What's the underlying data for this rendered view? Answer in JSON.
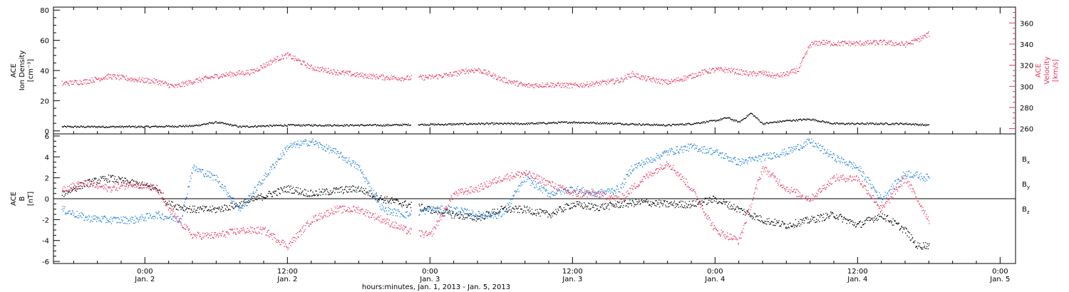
{
  "colors": {
    "axis": "#000000",
    "density": "#000000",
    "velocity": "#e8385e",
    "bx": "#000000",
    "by": "#1e7fd8",
    "bz": "#e8385e"
  },
  "xlabel": "hours:minutes, Jan. 1, 2013 - Jan. 5, 2013",
  "x_ticks": [
    {
      "hour": 24,
      "time": "0:00",
      "date": "Jan. 2"
    },
    {
      "hour": 36,
      "time": "12:00",
      "date": "Jan. 2"
    },
    {
      "hour": 48,
      "time": "0:00",
      "date": "Jan. 3"
    },
    {
      "hour": 60,
      "time": "12:00",
      "date": "Jan. 3"
    },
    {
      "hour": 72,
      "time": "0:00",
      "date": "Jan. 4"
    },
    {
      "hour": 84,
      "time": "12:00",
      "date": "Jan. 4"
    },
    {
      "hour": 96,
      "time": "0:00",
      "date": "Jan. 5"
    }
  ],
  "chart_data": [
    {
      "type": "scatter",
      "panel": "top",
      "xlim_hours": [
        16.3,
        97.3
      ],
      "left_axis": {
        "label": [
          "ACE",
          "Ion Density",
          "[cm⁻³]"
        ],
        "ylim": [
          -2,
          82
        ],
        "ticks": [
          0,
          20,
          40,
          60,
          80
        ]
      },
      "right_axis": {
        "label": [
          "ACE",
          "Velocity",
          "[km/s]"
        ],
        "ylim": [
          255,
          375
        ],
        "ticks": [
          260,
          280,
          300,
          320,
          340,
          360
        ]
      },
      "series": [
        {
          "axis": "left",
          "x": [
            17,
            20,
            24,
            28,
            30,
            32,
            36,
            40,
            44,
            47,
            49,
            52,
            56,
            60,
            64,
            68,
            70,
            72,
            73,
            74,
            75,
            76,
            78,
            80,
            82,
            84,
            86,
            88,
            90
          ],
          "y": [
            3,
            3,
            3,
            3.5,
            6,
            3,
            4,
            4,
            4,
            4.5,
            4.5,
            5,
            5,
            6,
            5,
            4,
            5,
            7,
            9,
            6,
            12,
            5,
            7,
            8,
            5,
            5,
            5,
            5,
            4
          ]
        },
        {
          "axis": "right",
          "x": [
            17,
            19,
            21,
            23,
            25,
            26.5,
            28,
            30,
            32,
            33,
            34,
            35,
            36,
            37,
            38,
            40,
            42,
            44,
            46,
            48,
            50,
            51,
            52,
            53,
            54,
            56,
            58,
            60,
            62,
            64,
            65,
            66,
            68,
            70,
            71,
            72,
            73,
            74,
            75,
            76,
            77,
            78,
            79,
            80,
            81,
            82,
            84,
            86,
            88,
            89,
            90
          ],
          "y": [
            303,
            305,
            310,
            307,
            305,
            300,
            305,
            310,
            313,
            314,
            320,
            326,
            330,
            324,
            318,
            314,
            311,
            309,
            308,
            309,
            312,
            315,
            316,
            312,
            307,
            301,
            302,
            301,
            303,
            306,
            312,
            308,
            304,
            310,
            314,
            316,
            316,
            314,
            312,
            313,
            310,
            312,
            316,
            340,
            342,
            341,
            341,
            342,
            340,
            344,
            350
          ]
        }
      ]
    },
    {
      "type": "scatter",
      "panel": "bottom",
      "xlim_hours": [
        16.3,
        97.3
      ],
      "left_axis": {
        "label": [
          "ACE",
          "B",
          "[nT]"
        ],
        "ylim": [
          -6.2,
          6.2
        ],
        "ticks": [
          -6,
          -4,
          -2,
          0,
          2,
          4,
          6
        ]
      },
      "zero_line": true,
      "series": [
        {
          "name": "Bx",
          "x": [
            17,
            19,
            21,
            23,
            25,
            26,
            28,
            30,
            32,
            34,
            36,
            38,
            40,
            42,
            44,
            46,
            48,
            50,
            52,
            54,
            56,
            58,
            60,
            62,
            64,
            66,
            68,
            70,
            72,
            74,
            76,
            78,
            80,
            82,
            84,
            86,
            88,
            89,
            90
          ],
          "y": [
            0.5,
            1.5,
            2,
            1.5,
            1,
            -0.5,
            -1,
            -1,
            -0.5,
            0.3,
            1,
            0.5,
            0.8,
            1,
            0,
            -0.5,
            -1,
            -1.5,
            -1.8,
            -1,
            -1,
            -1.5,
            -0.5,
            -0.8,
            -0.5,
            -0.3,
            -0.5,
            -0.5,
            0,
            -1,
            -2,
            -2.5,
            -2,
            -1.5,
            -2.5,
            -1.5,
            -3,
            -4.5,
            -4.4
          ]
        },
        {
          "name": "By",
          "x": [
            17,
            19,
            21,
            23,
            25,
            27,
            28,
            30,
            32,
            34,
            36,
            38,
            40,
            42,
            44,
            46,
            48,
            50,
            52,
            54,
            56,
            58,
            60,
            62,
            64,
            65,
            66,
            68,
            70,
            72,
            74,
            76,
            78,
            80,
            82,
            84,
            86,
            88,
            90
          ],
          "y": [
            -1,
            -1.8,
            -2,
            -2,
            -1.5,
            -2,
            3,
            2,
            -1,
            2,
            5,
            5.5,
            4.5,
            3,
            -1,
            -1.5,
            -1,
            -1,
            -1.5,
            -1.5,
            2,
            0.5,
            1,
            0.5,
            1,
            3,
            3.5,
            4.5,
            5,
            4.5,
            3.5,
            4,
            4.5,
            5.5,
            4,
            3,
            0,
            2.5,
            2
          ]
        },
        {
          "name": "Bz",
          "x": [
            17,
            19,
            21,
            23,
            25,
            26,
            28,
            30,
            32,
            34,
            36,
            38,
            40,
            42,
            44,
            46,
            48,
            50,
            52,
            54,
            56,
            58,
            60,
            62,
            64,
            66,
            68,
            70,
            72,
            74,
            76,
            78,
            80,
            82,
            84,
            86,
            88,
            90
          ],
          "y": [
            1,
            1.5,
            1,
            1.5,
            1,
            -1,
            -3.5,
            -3.5,
            -3,
            -3,
            -4.5,
            -2,
            -1,
            -1,
            -2,
            -3,
            -3.5,
            0.5,
            1,
            2,
            2.5,
            1.5,
            0.5,
            0.5,
            0,
            2,
            3.5,
            1,
            -3,
            -4,
            3,
            1,
            0,
            2,
            2,
            -1,
            2,
            -2
          ]
        }
      ],
      "legend": {
        "placement": "right",
        "entries": [
          {
            "base": "B",
            "sub": "x",
            "color": "#000000"
          },
          {
            "base": "B",
            "sub": "y",
            "color": "#1e7fd8"
          },
          {
            "base": "B",
            "sub": "z",
            "color": "#e8385e"
          }
        ]
      }
    }
  ]
}
